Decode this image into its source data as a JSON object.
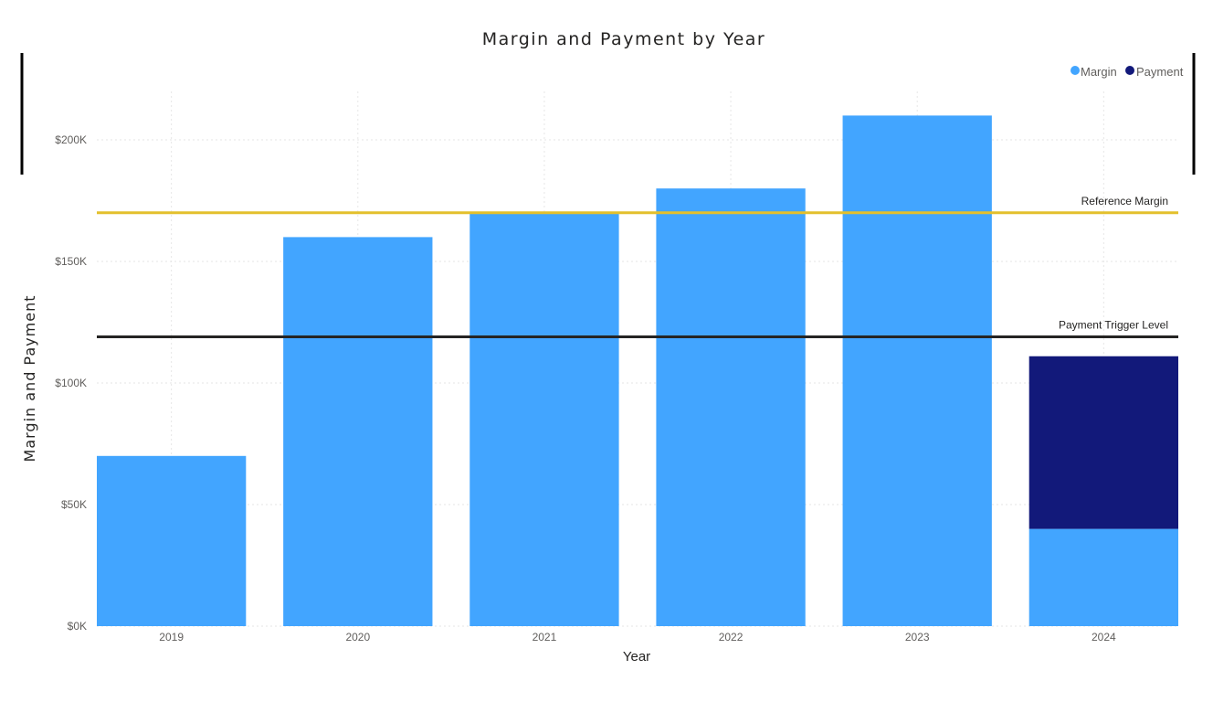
{
  "colors": {
    "margin": "#42A5FF",
    "payment": "#12197A",
    "reference_margin_line": "#E3C02C",
    "payment_trigger_line": "#252423"
  },
  "chart_data": {
    "type": "bar",
    "stacked": true,
    "title": "Margin and Payment by Year",
    "xlabel": "Year",
    "ylabel": "Margin and Payment",
    "categories": [
      "2019",
      "2020",
      "2021",
      "2022",
      "2023",
      "2024"
    ],
    "series": [
      {
        "name": "Margin",
        "color": "#42A5FF",
        "values": [
          70000,
          160000,
          170000,
          180000,
          210000,
          40000
        ]
      },
      {
        "name": "Payment",
        "color": "#12197A",
        "values": [
          0,
          0,
          0,
          0,
          0,
          71000
        ]
      }
    ],
    "yticks": [
      0,
      50000,
      100000,
      150000,
      200000
    ],
    "ytick_labels": [
      "$0K",
      "$50K",
      "$100K",
      "$150K",
      "$200K"
    ],
    "ylim": [
      0,
      220000
    ],
    "reference_lines": [
      {
        "label": "Reference Margin",
        "value": 170000,
        "color": "#E3C02C"
      },
      {
        "label": "Payment Trigger Level",
        "value": 119000,
        "color": "#252423"
      }
    ],
    "legend": {
      "position": "top-right",
      "items": [
        "Margin",
        "Payment"
      ]
    },
    "grid": true
  }
}
